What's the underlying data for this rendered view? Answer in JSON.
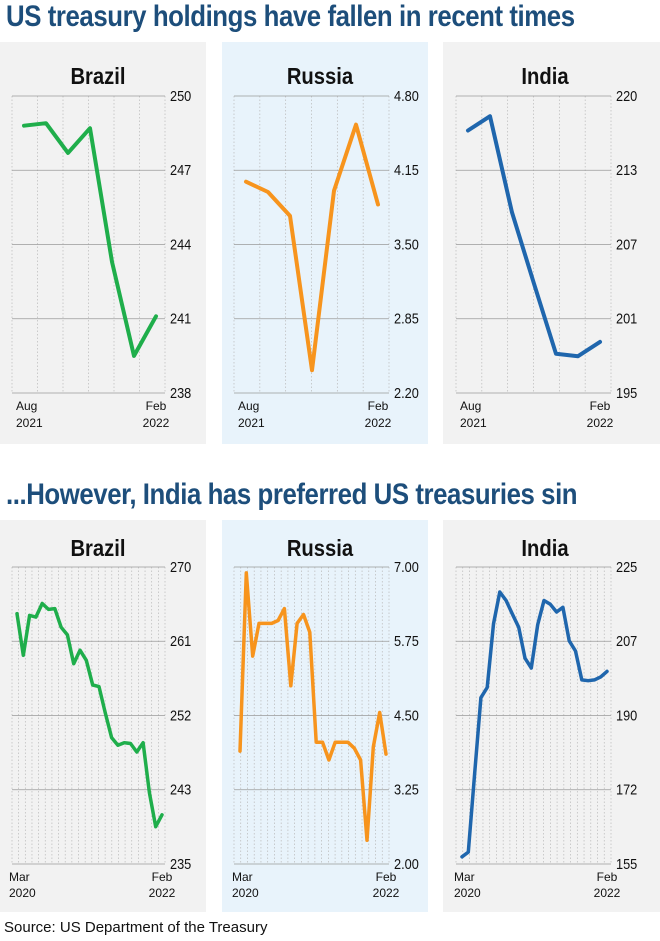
{
  "section1": {
    "title": "US treasury holdings have fallen in recent times"
  },
  "section2": {
    "title": "...However, India has preferred US treasuries sin"
  },
  "source": "Source: US Department of the Treasury",
  "colors": {
    "brazil": "#1fae4b",
    "russia": "#f7941d",
    "india": "#1f66ad",
    "title": "#1d4e7b",
    "highlight": "#e8f3fb",
    "panel": "#f2f2f2"
  },
  "chart_data": [
    {
      "type": "line",
      "title": "Brazil",
      "x_ticks": [
        {
          "top": "Aug",
          "bottom": "2021"
        },
        {
          "top": "Feb",
          "bottom": "2022"
        }
      ],
      "y_ticks": [
        "250",
        "247",
        "244",
        "241",
        "238"
      ],
      "ylim": [
        238,
        250
      ],
      "x": [
        "Aug 2021",
        "Sep 2021",
        "Oct 2021",
        "Nov 2021",
        "Dec 2021",
        "Jan 2022",
        "Feb 2022"
      ],
      "series": [
        {
          "values": [
            248.8,
            248.9,
            247.7,
            248.7,
            243.3,
            239.5,
            241.1
          ]
        }
      ]
    },
    {
      "type": "line",
      "title": "Russia",
      "x_ticks": [
        {
          "top": "Aug",
          "bottom": "2021"
        },
        {
          "top": "Feb",
          "bottom": "2022"
        }
      ],
      "y_ticks": [
        "4.80",
        "4.15",
        "3.50",
        "2.85",
        "2.20"
      ],
      "ylim": [
        2.2,
        4.8
      ],
      "x": [
        "Aug 2021",
        "Sep 2021",
        "Oct 2021",
        "Nov 2021",
        "Dec 2021",
        "Jan 2022",
        "Feb 2022"
      ],
      "series": [
        {
          "values": [
            4.05,
            3.96,
            3.75,
            2.4,
            3.97,
            4.55,
            3.85
          ]
        }
      ]
    },
    {
      "type": "line",
      "title": "India",
      "x_ticks": [
        {
          "top": "Aug",
          "bottom": "2021"
        },
        {
          "top": "Feb",
          "bottom": "2022"
        }
      ],
      "y_ticks": [
        "220",
        "213",
        "207",
        "201",
        "195"
      ],
      "ylim": [
        195,
        220
      ],
      "x": [
        "Aug 2021",
        "Sep 2021",
        "Oct 2021",
        "Nov 2021",
        "Dec 2021",
        "Jan 2022",
        "Feb 2022"
      ],
      "series": [
        {
          "values": [
            217.1,
            218.3,
            210.2,
            204.2,
            198.3,
            198.1,
            199.3
          ]
        }
      ]
    },
    {
      "type": "line",
      "title": "Brazil",
      "x_ticks": [
        {
          "top": "Mar",
          "bottom": "2020"
        },
        {
          "top": "Feb",
          "bottom": "2022"
        }
      ],
      "y_ticks": [
        "270",
        "261",
        "252",
        "243",
        "235"
      ],
      "ylim": [
        235,
        270
      ],
      "x": [
        "Mar 2020",
        "Apr 2020",
        "May 2020",
        "Jun 2020",
        "Jul 2020",
        "Aug 2020",
        "Sep 2020",
        "Oct 2020",
        "Nov 2020",
        "Dec 2020",
        "Jan 2021",
        "Feb 2021",
        "Mar 2021",
        "Apr 2021",
        "May 2021",
        "Jun 2021",
        "Jul 2021",
        "Aug 2021",
        "Sep 2021",
        "Oct 2021",
        "Nov 2021",
        "Dec 2021",
        "Jan 2022",
        "Feb 2022"
      ],
      "series": [
        {
          "values": [
            264.5,
            259.6,
            264.3,
            264.1,
            265.7,
            265.0,
            265.1,
            262.9,
            262.0,
            258.6,
            260.2,
            259.0,
            256.1,
            255.9,
            252.8,
            249.9,
            249.0,
            249.3,
            249.2,
            248.2,
            249.3,
            243.4,
            239.4,
            240.8
          ]
        }
      ]
    },
    {
      "type": "line",
      "title": "Russia",
      "x_ticks": [
        {
          "top": "Mar",
          "bottom": "2020"
        },
        {
          "top": "Feb",
          "bottom": "2022"
        }
      ],
      "y_ticks": [
        "7.00",
        "5.75",
        "4.50",
        "3.25",
        "2.00"
      ],
      "ylim": [
        2.0,
        7.0
      ],
      "x": [
        "Mar 2020",
        "Apr 2020",
        "May 2020",
        "Jun 2020",
        "Jul 2020",
        "Aug 2020",
        "Sep 2020",
        "Oct 2020",
        "Nov 2020",
        "Dec 2020",
        "Jan 2021",
        "Feb 2021",
        "Mar 2021",
        "Apr 2021",
        "May 2021",
        "Jun 2021",
        "Jul 2021",
        "Aug 2021",
        "Sep 2021",
        "Oct 2021",
        "Nov 2021",
        "Dec 2021",
        "Jan 2022",
        "Feb 2022"
      ],
      "series": [
        {
          "values": [
            3.9,
            6.9,
            5.5,
            6.05,
            6.05,
            6.05,
            6.1,
            6.3,
            5.0,
            6.05,
            6.2,
            5.9,
            4.05,
            4.05,
            3.75,
            4.05,
            4.05,
            4.05,
            3.95,
            3.75,
            2.4,
            3.97,
            4.55,
            3.85
          ]
        }
      ]
    },
    {
      "type": "line",
      "title": "India",
      "x_ticks": [
        {
          "top": "Mar",
          "bottom": "2020"
        },
        {
          "top": "Feb",
          "bottom": "2022"
        }
      ],
      "y_ticks": [
        "225",
        "207",
        "190",
        "172",
        "155"
      ],
      "ylim": [
        155,
        225
      ],
      "x": [
        "Mar 2020",
        "Apr 2020",
        "May 2020",
        "Jun 2020",
        "Jul 2020",
        "Aug 2020",
        "Sep 2020",
        "Oct 2020",
        "Nov 2020",
        "Dec 2020",
        "Jan 2021",
        "Feb 2021",
        "Mar 2021",
        "Apr 2021",
        "May 2021",
        "Jun 2021",
        "Jul 2021",
        "Aug 2021",
        "Sep 2021",
        "Oct 2021",
        "Nov 2021",
        "Dec 2021",
        "Jan 2022",
        "Feb 2022"
      ],
      "series": [
        {
          "values": [
            156.7,
            157.8,
            176.2,
            194.2,
            196.6,
            211.6,
            219.1,
            217.1,
            213.9,
            210.8,
            203.5,
            201.2,
            211.4,
            217.1,
            216.2,
            214.4,
            215.5,
            207.6,
            205.2,
            198.4,
            198.2,
            198.4,
            199.1,
            200.4
          ]
        }
      ]
    }
  ]
}
